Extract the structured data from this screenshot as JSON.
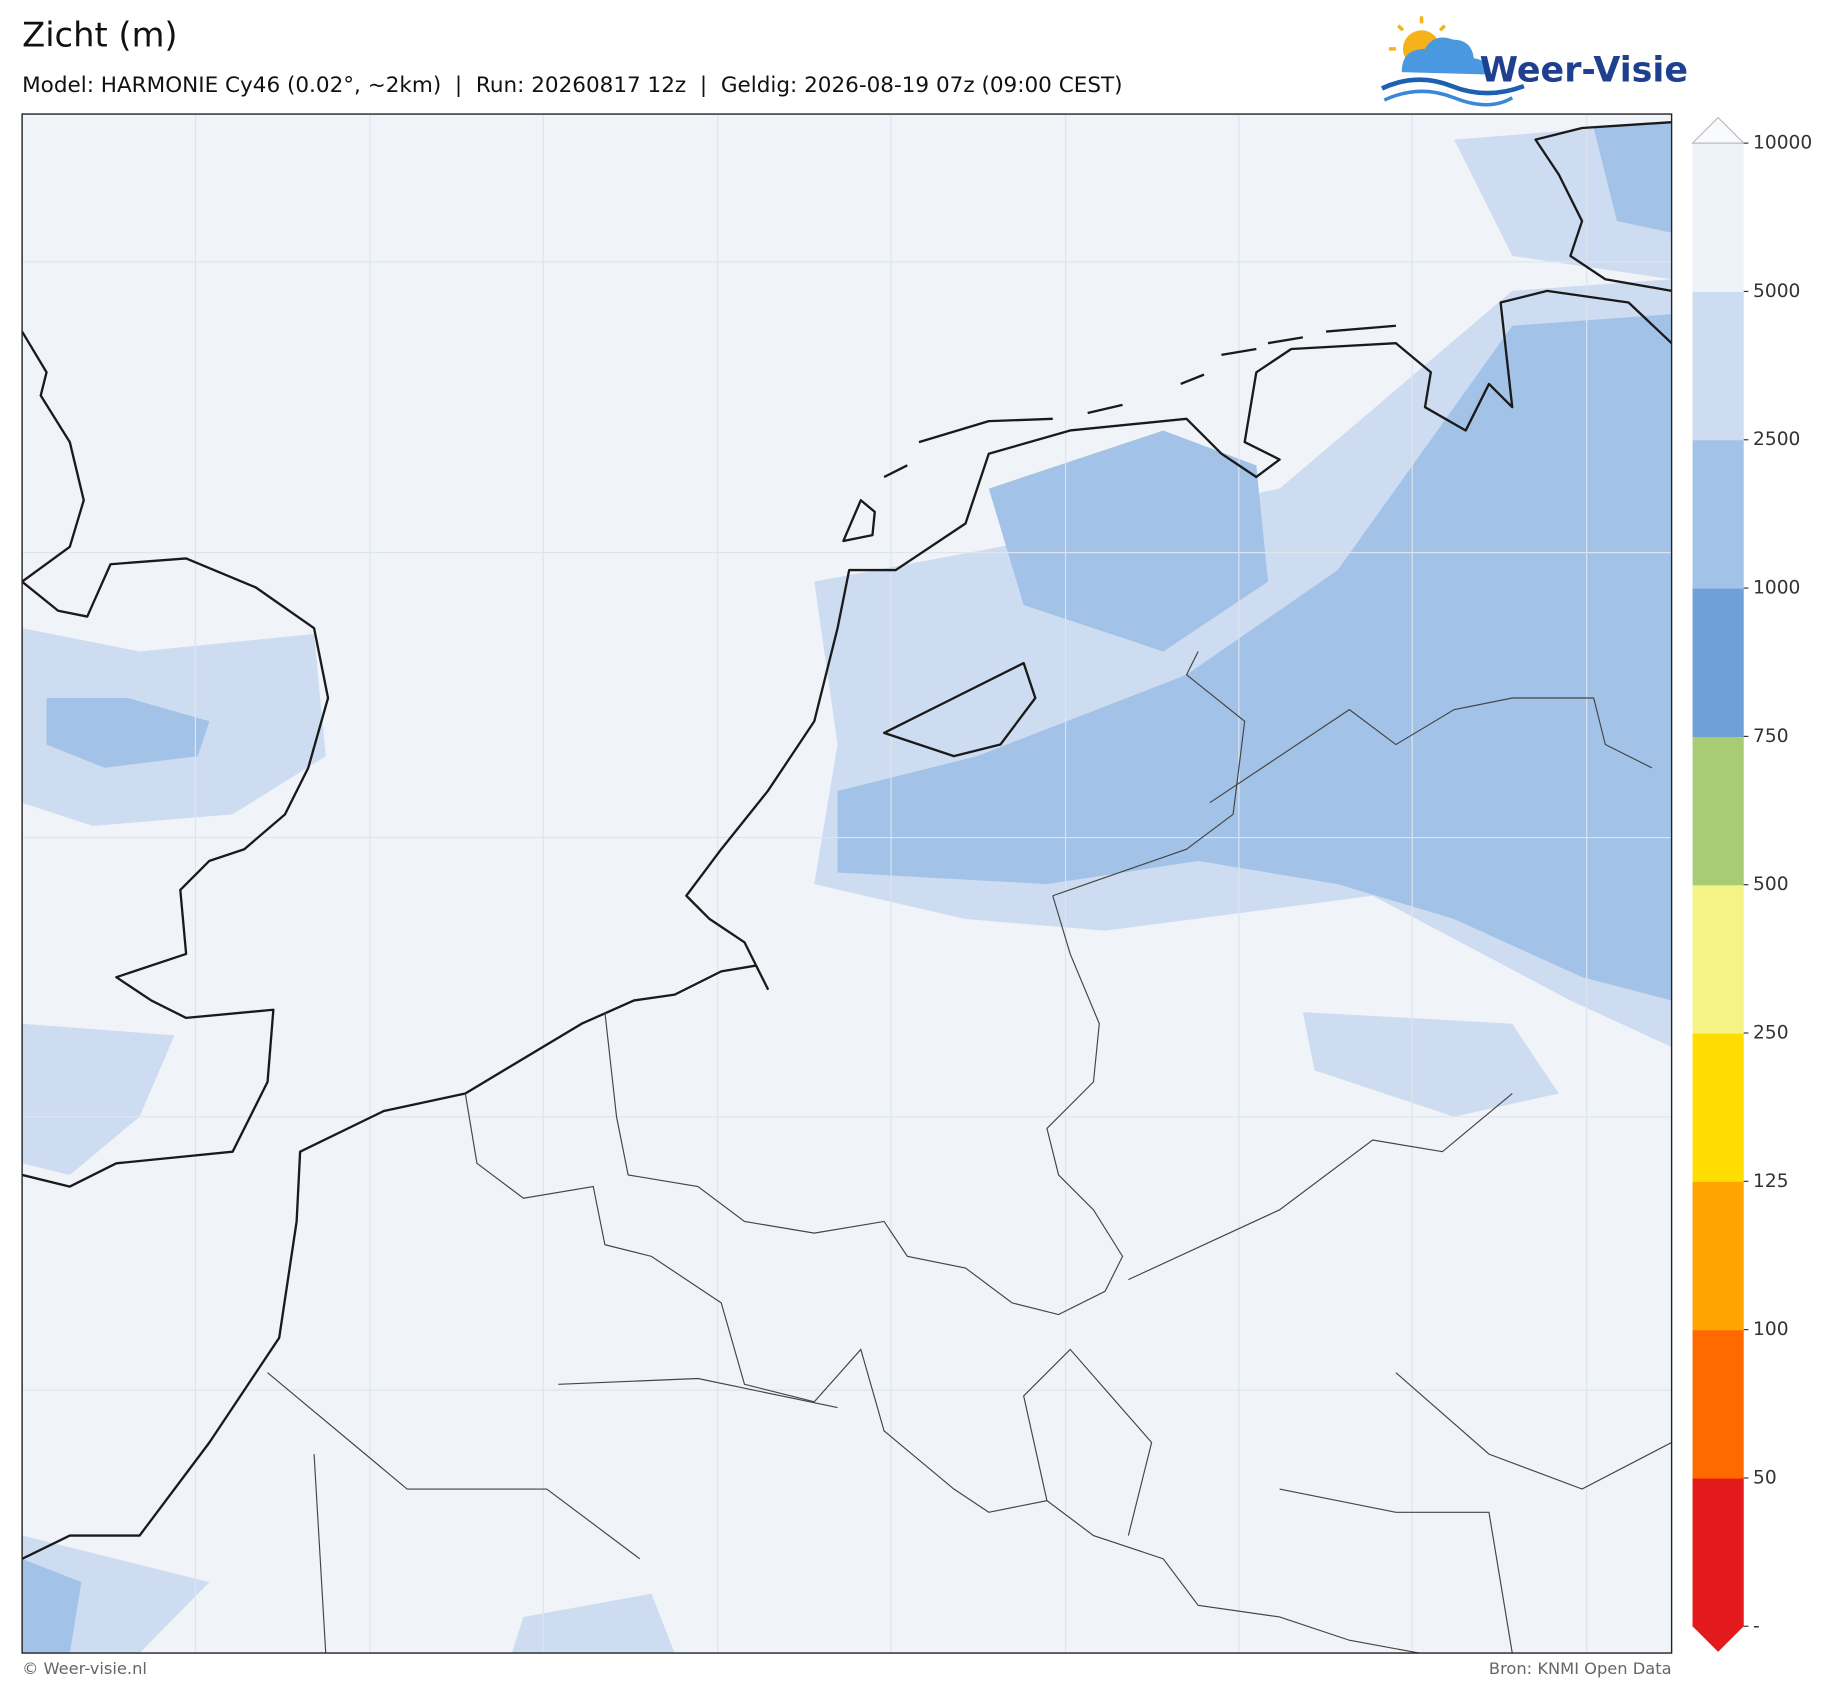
{
  "header": {
    "title": "Zicht (m)",
    "subtitle": "Model: HARMONIE Cy46 (0.02°, ~2km)  |  Run: 20260817 12z  |  Geldig: 2026-08-19 07z (09:00 CEST)",
    "logo": "Weer-Visie"
  },
  "colorbar": {
    "ticks": [
      "-",
      50,
      100,
      125,
      250,
      500,
      750,
      1000,
      2500,
      5000,
      10000
    ],
    "colors": [
      "#e31a1c",
      "#ff6a00",
      "#ffa500",
      "#ffdd00",
      "#f4f485",
      "#a8cc74",
      "#6fa0d8",
      "#a3c2e8",
      "#cddcf0",
      "#eef3f9"
    ]
  },
  "footer": {
    "left": "© Weer-visie.nl",
    "right": "Bron: KNMI Open Data"
  }
}
